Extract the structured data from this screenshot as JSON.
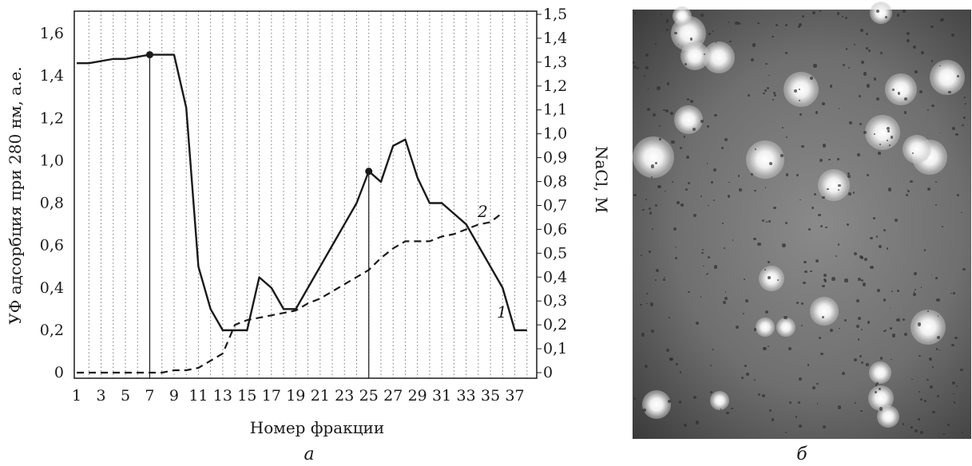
{
  "chart_data": {
    "type": "line",
    "xlabel": "Номер фракции",
    "ylabel_left": "УФ адсорбция при 280 нм, а.е.",
    "ylabel_right": "NaCl, M",
    "x_ticks": [
      "1",
      "3",
      "5",
      "7",
      "9",
      "11",
      "13",
      "15",
      "17",
      "19",
      "21",
      "23",
      "25",
      "27",
      "29",
      "31",
      "33",
      "35",
      "37"
    ],
    "y_left_ticks": [
      "0",
      "0,2",
      "0,4",
      "0,6",
      "0,8",
      "1,0",
      "1,2",
      "1,4",
      "1,6"
    ],
    "y_right_ticks": [
      "0",
      "0,1",
      "0,2",
      "0,3",
      "0,4",
      "0,5",
      "0,6",
      "0,7",
      "0,8",
      "0,9",
      "1,0",
      "1,1",
      "1,2",
      "1,3",
      "1,4",
      "1,5"
    ],
    "xlim": [
      0.8,
      38.8
    ],
    "ylim_left": [
      0,
      1.6
    ],
    "ylim_right": [
      0,
      1.5
    ],
    "grid": "vertical-dotted",
    "series": [
      {
        "name": "1",
        "style": "solid",
        "axis": "left",
        "x": [
          1,
          2,
          3,
          4,
          5,
          6,
          7,
          8,
          9,
          10,
          11,
          12,
          13,
          14,
          15,
          16,
          17,
          18,
          19,
          20,
          21,
          22,
          23,
          24,
          25,
          26,
          27,
          28,
          29,
          30,
          31,
          32,
          33,
          34,
          35,
          36,
          37,
          38
        ],
        "y": [
          1.46,
          1.46,
          1.47,
          1.48,
          1.48,
          1.49,
          1.5,
          1.5,
          1.5,
          1.25,
          0.5,
          0.3,
          0.2,
          0.2,
          0.2,
          0.45,
          0.4,
          0.3,
          0.3,
          0.4,
          0.5,
          0.6,
          0.7,
          0.8,
          0.95,
          0.9,
          1.07,
          1.1,
          0.92,
          0.8,
          0.8,
          0.75,
          0.7,
          0.6,
          0.5,
          0.4,
          0.2,
          0.2
        ]
      },
      {
        "name": "2",
        "style": "dashed",
        "axis": "right",
        "x": [
          1,
          2,
          3,
          4,
          5,
          6,
          7,
          8,
          9,
          10,
          11,
          12,
          13,
          14,
          15,
          16,
          17,
          18,
          19,
          20,
          21,
          22,
          23,
          24,
          25,
          26,
          27,
          28,
          29,
          30,
          31,
          32,
          33,
          34,
          35,
          36
        ],
        "y": [
          0,
          0,
          0,
          0,
          0,
          0,
          0,
          0,
          0.01,
          0.01,
          0.02,
          0.05,
          0.08,
          0.2,
          0.22,
          0.23,
          0.24,
          0.25,
          0.26,
          0.29,
          0.31,
          0.34,
          0.37,
          0.4,
          0.43,
          0.48,
          0.52,
          0.55,
          0.55,
          0.55,
          0.57,
          0.58,
          0.6,
          0.62,
          0.63,
          0.67
        ]
      }
    ],
    "markers": [
      {
        "x": 7,
        "y": 1.5
      },
      {
        "x": 25,
        "y": 0.95
      }
    ],
    "panel_labels": [
      "а",
      "б"
    ]
  },
  "image_panel": {
    "description_icon": "micrograph-image"
  }
}
